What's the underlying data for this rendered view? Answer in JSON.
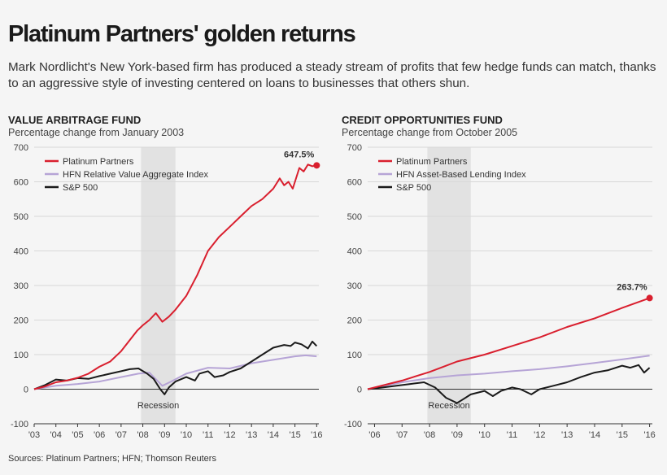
{
  "title": "Platinum Partners' golden returns",
  "subtitle": "Mark Nordlicht's New York-based firm has produced a steady stream of profits that few hedge funds can match, thanks to an aggressive style of investing centered on loans to businesses that others shun.",
  "source": "Sources: Platinum Partners; HFN; Thomson Reuters",
  "colors": {
    "platinum": "#d91f2e",
    "index": "#b6a4d6",
    "sp500": "#1a1a1a",
    "recession": "#e2e2e2"
  },
  "chart_data": [
    {
      "type": "line",
      "title": "VALUE ARBITRAGE FUND",
      "subtitle": "Percentage change from January 2003",
      "ylim": [
        -100,
        700
      ],
      "yticks": [
        -100,
        0,
        100,
        200,
        300,
        400,
        500,
        600,
        700
      ],
      "xlim": [
        2003,
        2016.1
      ],
      "xticks": [
        2003,
        2004,
        2005,
        2006,
        2007,
        2008,
        2009,
        2010,
        2011,
        2012,
        2013,
        2014,
        2015,
        2016
      ],
      "xtick_labels": [
        "'03",
        "'04",
        "'05",
        "'06",
        "'07",
        "'08",
        "'09",
        "'10",
        "'11",
        "'12",
        "'13",
        "'14",
        "'15",
        "'16"
      ],
      "grid": true,
      "legend_position": "top-left",
      "shaded_region": {
        "label": "Recession",
        "start": 2007.92,
        "end": 2009.5
      },
      "end_annotation": {
        "series": "Platinum Partners",
        "label": "647.5%",
        "x": 2016,
        "y": 647.5
      },
      "series": [
        {
          "name": "Platinum Partners",
          "color": "#d91f2e",
          "x": [
            2003,
            2003.5,
            2004,
            2004.5,
            2005,
            2005.5,
            2006,
            2006.5,
            2007,
            2007.5,
            2007.75,
            2008,
            2008.3,
            2008.6,
            2008.9,
            2009.2,
            2009.5,
            2010,
            2010.5,
            2011,
            2011.5,
            2012,
            2012.5,
            2013,
            2013.5,
            2014,
            2014.3,
            2014.5,
            2014.7,
            2014.9,
            2015.2,
            2015.4,
            2015.6,
            2015.8,
            2016
          ],
          "y": [
            0,
            8,
            20,
            25,
            33,
            45,
            65,
            80,
            110,
            150,
            170,
            185,
            200,
            220,
            195,
            210,
            230,
            270,
            330,
            400,
            440,
            470,
            500,
            530,
            550,
            580,
            610,
            590,
            600,
            580,
            640,
            630,
            650,
            645,
            647.5
          ]
        },
        {
          "name": "HFN Relative Value Aggregate Index",
          "color": "#b6a4d6",
          "x": [
            2003,
            2004,
            2005,
            2006,
            2007,
            2007.8,
            2008.3,
            2008.9,
            2009.3,
            2010,
            2011,
            2012,
            2013,
            2014,
            2015,
            2015.5,
            2016
          ],
          "y": [
            0,
            10,
            15,
            22,
            35,
            45,
            48,
            10,
            22,
            45,
            62,
            60,
            75,
            85,
            95,
            98,
            95
          ]
        },
        {
          "name": "S&P 500",
          "color": "#1a1a1a",
          "x": [
            2003,
            2003.5,
            2004,
            2004.5,
            2005,
            2005.5,
            2006,
            2006.5,
            2007,
            2007.4,
            2007.8,
            2008.2,
            2008.5,
            2008.8,
            2009.0,
            2009.2,
            2009.5,
            2010,
            2010.4,
            2010.6,
            2011,
            2011.3,
            2011.7,
            2012,
            2012.5,
            2013,
            2013.5,
            2014,
            2014.5,
            2014.8,
            2015,
            2015.3,
            2015.6,
            2015.8,
            2016
          ],
          "y": [
            0,
            12,
            28,
            25,
            32,
            30,
            38,
            45,
            52,
            58,
            60,
            45,
            30,
            0,
            -15,
            5,
            22,
            35,
            25,
            45,
            52,
            35,
            40,
            50,
            60,
            80,
            100,
            120,
            128,
            125,
            135,
            130,
            118,
            138,
            125
          ]
        }
      ]
    },
    {
      "type": "line",
      "title": "CREDIT OPPORTUNITIES FUND",
      "subtitle": "Percentage change from October 2005",
      "ylim": [
        -100,
        700
      ],
      "yticks": [
        -100,
        0,
        100,
        200,
        300,
        400,
        500,
        600,
        700
      ],
      "xlim": [
        2005.75,
        2016.1
      ],
      "xticks": [
        2006,
        2007,
        2008,
        2009,
        2010,
        2011,
        2012,
        2013,
        2014,
        2015,
        2016
      ],
      "xtick_labels": [
        "'06",
        "'07",
        "'08",
        "'09",
        "'10",
        "'11",
        "'12",
        "'13",
        "'14",
        "'15",
        "'16"
      ],
      "grid": true,
      "legend_position": "top-left",
      "shaded_region": {
        "label": "Recession",
        "start": 2007.92,
        "end": 2009.5
      },
      "end_annotation": {
        "series": "Platinum Partners",
        "label": "263.7%",
        "x": 2016,
        "y": 263.7
      },
      "series": [
        {
          "name": "Platinum Partners",
          "color": "#d91f2e",
          "x": [
            2005.75,
            2006,
            2007,
            2008,
            2008.5,
            2009,
            2010,
            2011,
            2012,
            2013,
            2014,
            2015,
            2016
          ],
          "y": [
            0,
            5,
            25,
            50,
            65,
            80,
            100,
            125,
            150,
            180,
            205,
            235,
            263.7
          ]
        },
        {
          "name": "HFN Asset-Based Lending Index",
          "color": "#b6a4d6",
          "x": [
            2005.75,
            2007,
            2008,
            2009,
            2010,
            2011,
            2012,
            2013,
            2014,
            2015,
            2016
          ],
          "y": [
            0,
            20,
            32,
            40,
            45,
            52,
            58,
            66,
            76,
            86,
            97
          ]
        },
        {
          "name": "S&P 500",
          "color": "#1a1a1a",
          "x": [
            2005.75,
            2006.3,
            2006.8,
            2007.3,
            2007.8,
            2008.2,
            2008.6,
            2009.0,
            2009.2,
            2009.5,
            2010.0,
            2010.3,
            2010.6,
            2011.0,
            2011.3,
            2011.7,
            2012.0,
            2012.5,
            2013.0,
            2013.5,
            2014.0,
            2014.5,
            2015.0,
            2015.3,
            2015.6,
            2015.8,
            2016
          ],
          "y": [
            0,
            5,
            10,
            15,
            20,
            5,
            -25,
            -40,
            -30,
            -15,
            -5,
            -20,
            -5,
            5,
            0,
            -15,
            0,
            10,
            20,
            35,
            48,
            55,
            68,
            62,
            70,
            48,
            62
          ]
        }
      ]
    }
  ]
}
